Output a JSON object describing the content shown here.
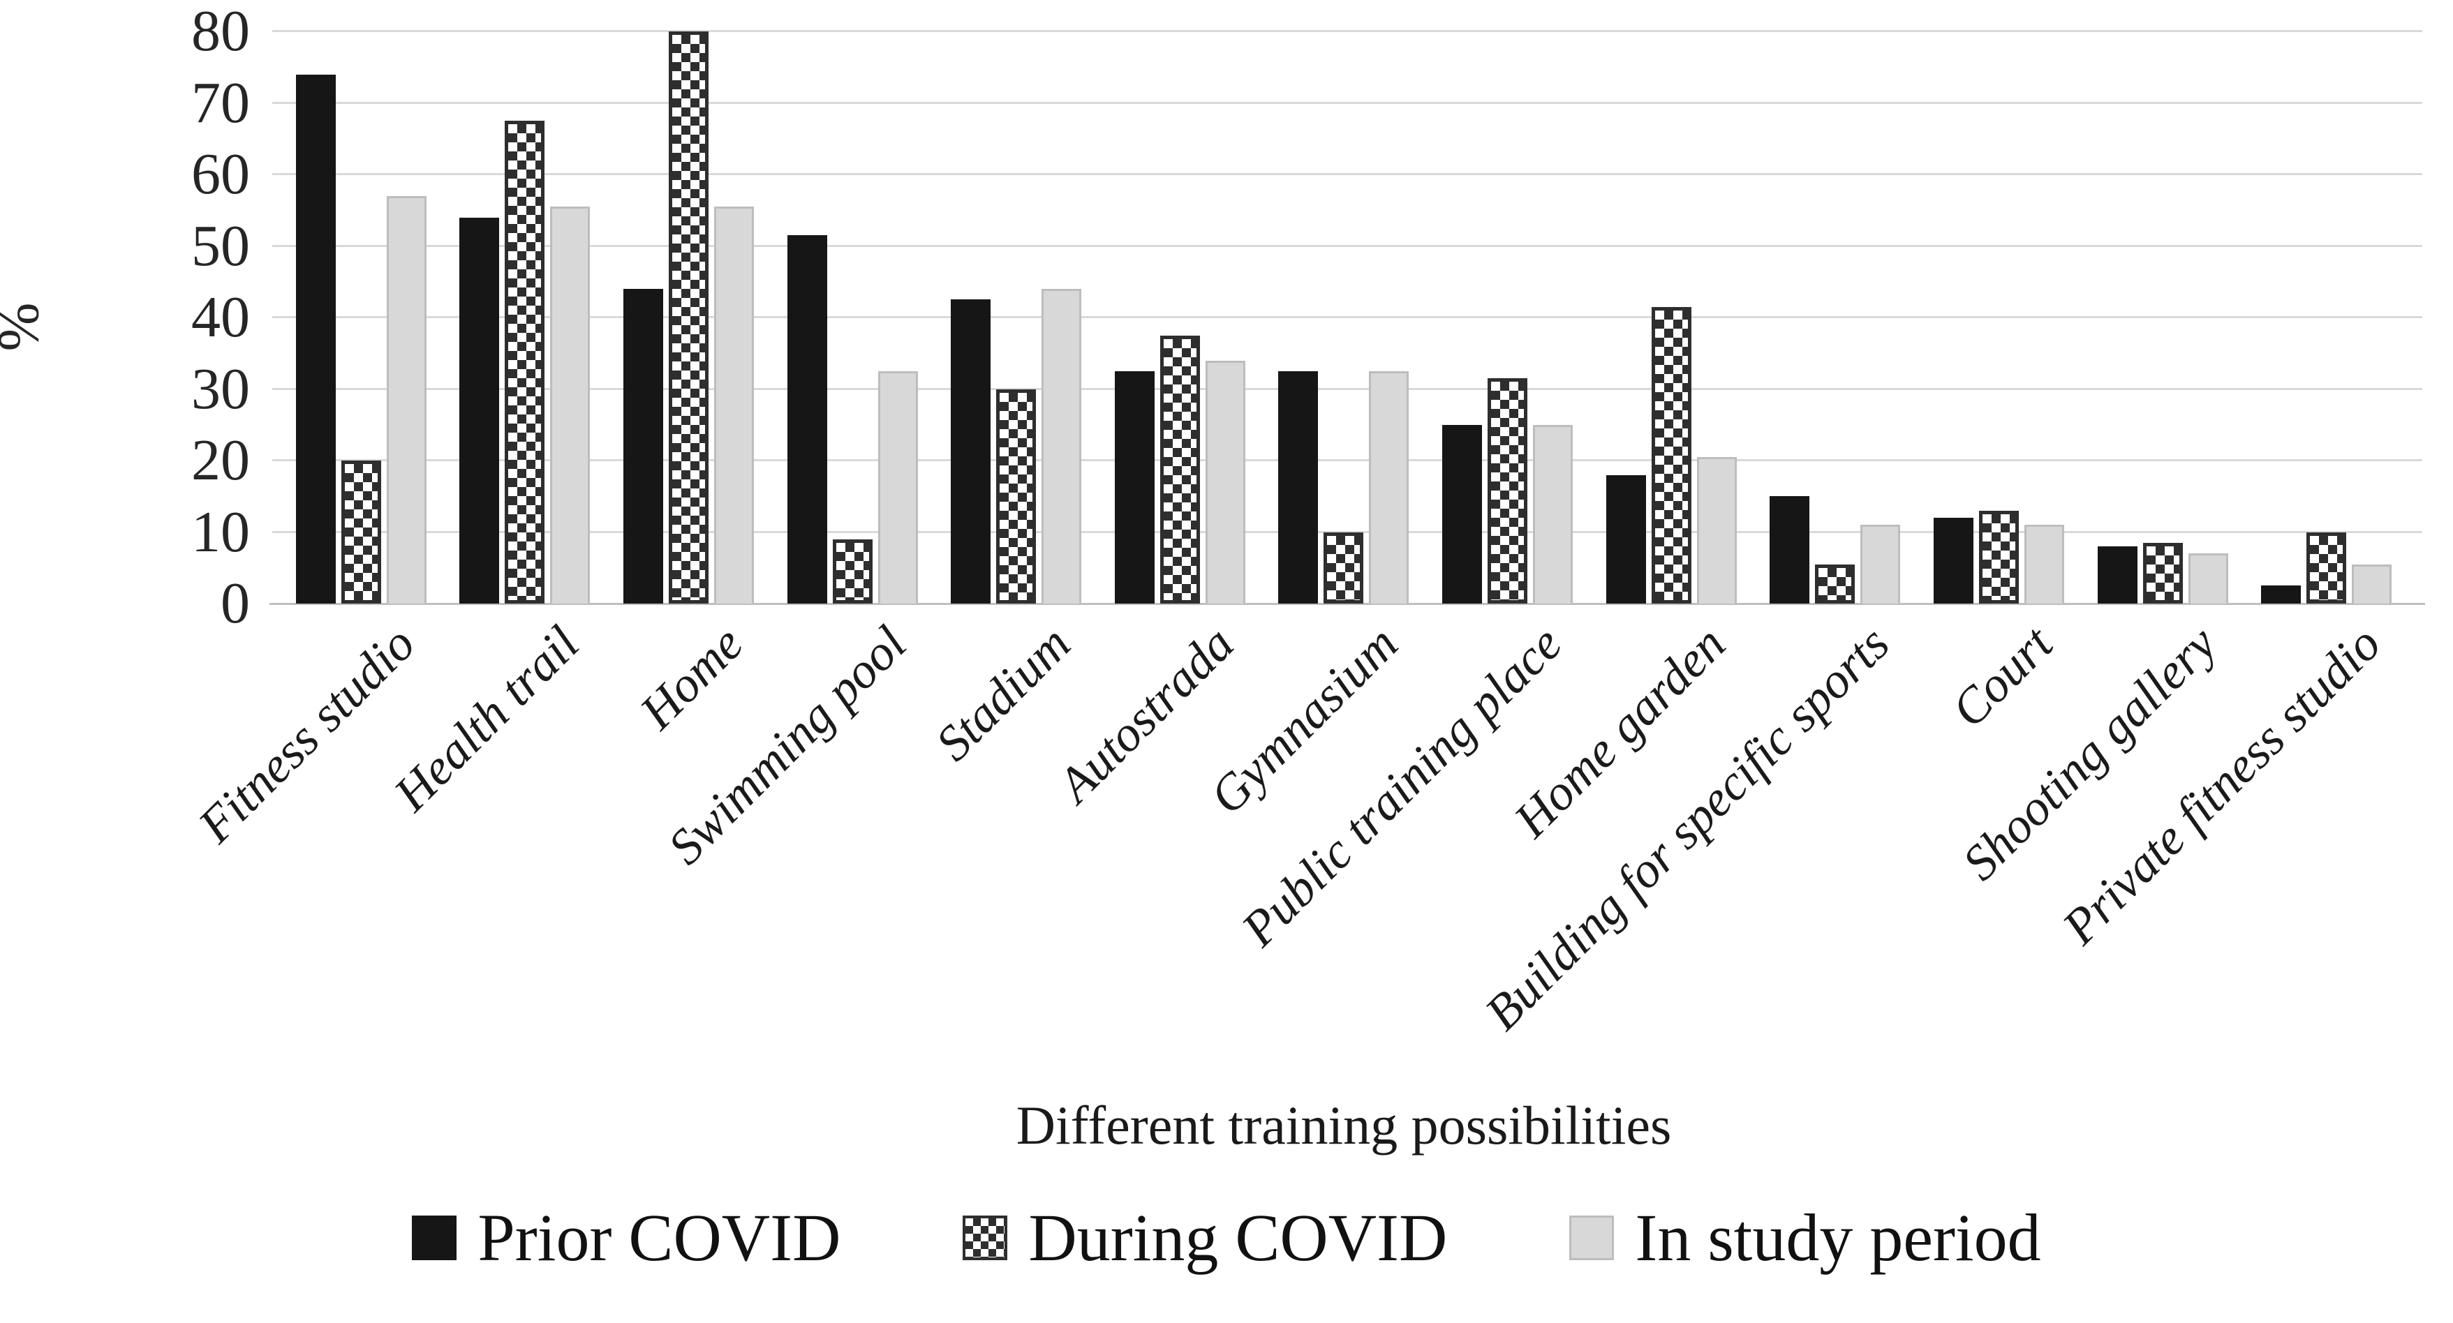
{
  "figure": {
    "background": "#ffffff"
  },
  "colors": {
    "gridline": "#d9d9d9",
    "axis_line": "#bfbfbf",
    "tick_text": "#262626",
    "bar_prior": "#161616",
    "bar_during_pattern": "#2e2e2e",
    "bar_study": "#d8d8d8"
  },
  "chart_data": {
    "type": "bar",
    "title": "",
    "xlabel": "Different training possibilities",
    "ylabel": "%",
    "ylim": [
      0,
      80
    ],
    "yticks": [
      0,
      10,
      20,
      30,
      40,
      50,
      60,
      70,
      80
    ],
    "grid": true,
    "legend_position": "bottom",
    "categories": [
      "Fitness studio",
      "Health trail",
      "Home",
      "Swimming pool",
      "Stadium",
      "Autostrada",
      "Gymnasium",
      "Public training place",
      "Home garden",
      "Building for specific sports",
      "Court",
      "Shooting gallery",
      "Private fitness studio"
    ],
    "series": [
      {
        "name": "Prior COVID",
        "style": "solid-black",
        "values": [
          74,
          54,
          44,
          51.5,
          42.5,
          32.5,
          32.5,
          25,
          18,
          15,
          12,
          8,
          2.5
        ]
      },
      {
        "name": "During COVID",
        "style": "checkerboard",
        "values": [
          20,
          67.5,
          80,
          9,
          30,
          37.5,
          10,
          31.5,
          41.5,
          5.5,
          13,
          8.5,
          10
        ]
      },
      {
        "name": "In study period",
        "style": "solid-lightgray",
        "values": [
          57,
          55.5,
          55.5,
          32.5,
          44,
          34,
          32.5,
          25,
          20.5,
          11,
          11,
          7,
          5.5
        ]
      }
    ]
  }
}
